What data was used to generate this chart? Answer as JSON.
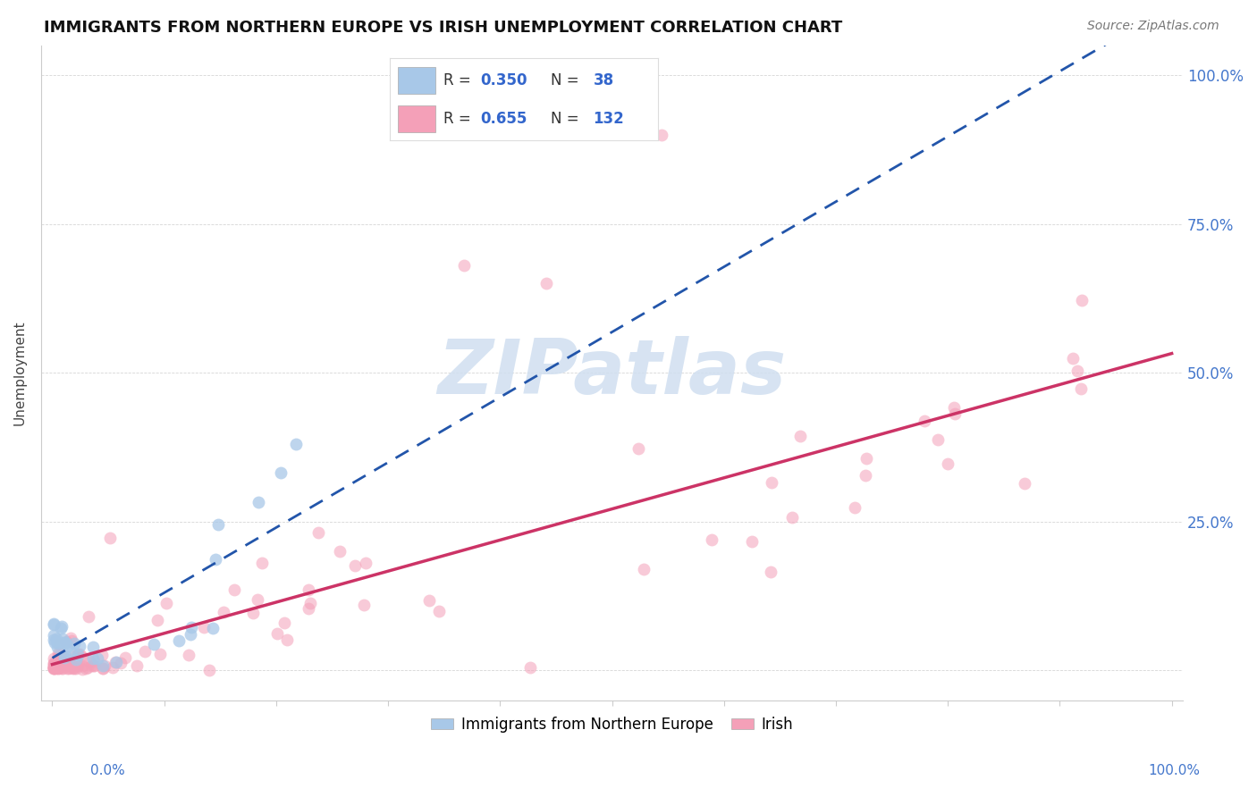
{
  "title": "IMMIGRANTS FROM NORTHERN EUROPE VS IRISH UNEMPLOYMENT CORRELATION CHART",
  "source": "Source: ZipAtlas.com",
  "ylabel": "Unemployment",
  "right_yticklabels": [
    "",
    "25.0%",
    "50.0%",
    "75.0%",
    "100.0%"
  ],
  "legend_bottom": [
    "Immigrants from Northern Europe",
    "Irish"
  ],
  "blue_color": "#a8c8e8",
  "pink_color": "#f4a0b8",
  "blue_line_color": "#2255aa",
  "pink_line_color": "#cc3366",
  "watermark_color": "#d0dff0",
  "watermark": "ZIPatlas",
  "R_blue": 0.35,
  "N_blue": 38,
  "R_pink": 0.655,
  "N_pink": 132
}
